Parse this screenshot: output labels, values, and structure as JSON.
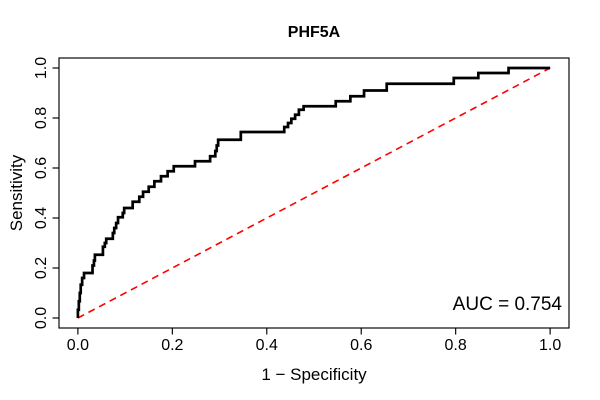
{
  "chart_data": {
    "type": "line",
    "title": "PHF5A",
    "xlabel": "1 − Specificity",
    "ylabel": "Sensitivity",
    "annotation": "AUC = 0.754",
    "auc": 0.754,
    "xlim": [
      0,
      1
    ],
    "ylim": [
      0,
      1
    ],
    "grid": false,
    "x_tick_values": [
      0.0,
      0.2,
      0.4,
      0.6,
      0.8,
      1.0
    ],
    "x_tick_labels": [
      "0.0",
      "0.2",
      "0.4",
      "0.6",
      "0.8",
      "1.0"
    ],
    "y_tick_values": [
      0.0,
      0.2,
      0.4,
      0.6,
      0.8,
      1.0
    ],
    "y_tick_labels": [
      "0.0",
      "0.2",
      "0.4",
      "0.6",
      "0.8",
      "1.0"
    ],
    "axis_color": "#000000",
    "series": [
      {
        "name": "roc-curve",
        "draw": "step",
        "color": "#000000",
        "line_width": 2.7,
        "points": [
          [
            0.0,
            0.0
          ],
          [
            0.0,
            0.033
          ],
          [
            0.002,
            0.067
          ],
          [
            0.004,
            0.1
          ],
          [
            0.006,
            0.133
          ],
          [
            0.009,
            0.16
          ],
          [
            0.013,
            0.18
          ],
          [
            0.031,
            0.21
          ],
          [
            0.034,
            0.23
          ],
          [
            0.036,
            0.253
          ],
          [
            0.053,
            0.285
          ],
          [
            0.057,
            0.3
          ],
          [
            0.06,
            0.317
          ],
          [
            0.074,
            0.34
          ],
          [
            0.077,
            0.36
          ],
          [
            0.081,
            0.38
          ],
          [
            0.085,
            0.403
          ],
          [
            0.095,
            0.42
          ],
          [
            0.098,
            0.44
          ],
          [
            0.116,
            0.465
          ],
          [
            0.13,
            0.485
          ],
          [
            0.138,
            0.505
          ],
          [
            0.15,
            0.525
          ],
          [
            0.162,
            0.547
          ],
          [
            0.176,
            0.567
          ],
          [
            0.19,
            0.587
          ],
          [
            0.203,
            0.607
          ],
          [
            0.248,
            0.627
          ],
          [
            0.28,
            0.647
          ],
          [
            0.291,
            0.668
          ],
          [
            0.294,
            0.69
          ],
          [
            0.297,
            0.713
          ],
          [
            0.345,
            0.744
          ],
          [
            0.437,
            0.764
          ],
          [
            0.445,
            0.78
          ],
          [
            0.452,
            0.797
          ],
          [
            0.46,
            0.813
          ],
          [
            0.468,
            0.833
          ],
          [
            0.478,
            0.847
          ],
          [
            0.546,
            0.867
          ],
          [
            0.577,
            0.887
          ],
          [
            0.606,
            0.91
          ],
          [
            0.654,
            0.937
          ],
          [
            0.796,
            0.96
          ],
          [
            0.848,
            0.98
          ],
          [
            0.912,
            1.0
          ],
          [
            1.0,
            1.0
          ]
        ]
      },
      {
        "name": "chance-diagonal",
        "draw": "line",
        "color": "#ff0000",
        "line_width": 1.6,
        "dash": [
          7,
          5
        ],
        "points": [
          [
            0,
            0
          ],
          [
            1,
            1
          ]
        ]
      }
    ]
  }
}
